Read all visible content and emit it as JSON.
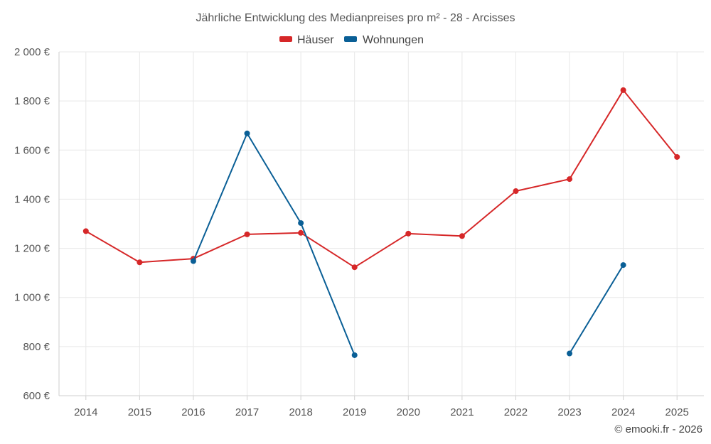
{
  "chart_data": {
    "type": "line",
    "title": "Jährliche Entwicklung des Medianpreises pro m² - 28 - Arcisses",
    "categories": [
      "2014",
      "2015",
      "2016",
      "2017",
      "2018",
      "2019",
      "2020",
      "2021",
      "2022",
      "2023",
      "2024",
      "2025"
    ],
    "ylim": [
      600,
      2000
    ],
    "yticks": [
      600,
      800,
      1000,
      1200,
      1400,
      1600,
      1800,
      2000
    ],
    "ytick_labels": [
      "600 €",
      "800 €",
      "1 000 €",
      "1 200 €",
      "1 400 €",
      "1 600 €",
      "1 800 €",
      "2 000 €"
    ],
    "grid": true,
    "legend_position": "top-center",
    "series": [
      {
        "name": "Häuser",
        "color": "#d62728",
        "values": [
          1270,
          1143,
          1158,
          1257,
          1263,
          1123,
          1260,
          1250,
          1433,
          1482,
          1844,
          1572
        ]
      },
      {
        "name": "Wohnungen",
        "color": "#0a5f96",
        "values": [
          null,
          null,
          1148,
          1668,
          1303,
          765,
          null,
          null,
          null,
          772,
          1132,
          null
        ]
      }
    ],
    "credit": "© emooki.fr - 2026"
  }
}
